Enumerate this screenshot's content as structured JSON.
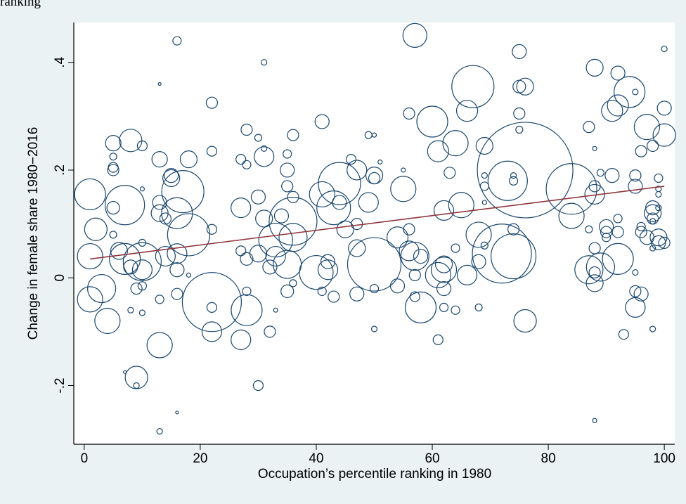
{
  "caption": "ranking",
  "chart_data": {
    "type": "bubble",
    "xlabel": "Occupation’s percentile ranking in 1980",
    "ylabel": "Change in female share 1980−2016",
    "xlim": [
      -1.8,
      101.8
    ],
    "ylim": [
      -0.309,
      0.474
    ],
    "xticks": [
      0,
      20,
      40,
      60,
      80,
      100
    ],
    "yticks": [
      {
        "value": -0.2,
        "label": "-.2"
      },
      0,
      {
        "value": 0.2,
        "label": ".2"
      },
      {
        "value": 0.4,
        "label": ".4"
      }
    ],
    "color": "#1a476f",
    "series": [
      {
        "name": "occupations",
        "color": "#1a476f",
        "x": [
          1,
          2,
          1,
          3,
          1,
          4,
          5,
          5,
          5,
          5,
          5,
          5,
          6,
          7,
          8,
          7,
          10,
          8,
          10,
          9,
          10,
          8,
          10,
          9,
          7,
          9,
          10,
          10,
          10,
          13,
          13,
          13,
          13,
          14,
          13,
          13,
          13,
          16,
          16,
          16,
          14,
          15,
          15,
          16,
          16,
          16,
          17,
          18,
          18,
          18,
          22,
          22,
          22,
          22,
          22,
          22,
          27,
          27,
          27,
          27,
          28,
          28,
          28,
          28,
          28,
          30,
          30,
          30,
          31,
          31,
          31,
          30,
          31,
          32,
          32,
          33,
          33,
          34,
          33,
          35,
          35,
          35,
          35,
          35,
          36,
          36,
          36,
          36,
          36,
          41,
          41,
          40,
          42,
          42,
          41,
          43,
          43,
          44,
          45,
          44,
          47,
          47,
          47,
          47,
          46,
          49,
          49,
          50,
          50,
          50,
          50,
          50,
          50,
          51,
          54,
          54,
          55,
          55,
          56,
          56,
          56,
          57,
          57,
          58,
          58,
          57,
          57,
          60,
          61,
          61,
          61,
          62,
          62,
          62,
          62,
          62,
          63,
          64,
          64,
          64,
          65,
          66,
          66,
          67,
          68,
          68,
          68,
          69,
          69,
          69,
          69,
          69,
          72,
          73,
          74,
          74,
          74,
          74,
          75,
          75,
          76,
          75,
          75,
          76,
          76,
          84,
          84,
          87,
          87,
          88,
          88,
          88,
          88,
          88,
          88,
          88,
          87,
          88,
          89,
          89,
          91,
          92,
          92,
          94,
          95,
          91,
          90,
          90,
          90,
          92,
          92,
          92,
          93,
          95,
          95,
          95,
          95,
          96,
          95,
          96,
          96,
          96,
          97,
          97,
          98,
          98,
          98,
          98,
          98,
          99,
          99,
          99,
          99,
          99,
          99,
          100,
          100,
          100,
          100,
          98,
          98
        ],
        "values": [
          0.155,
          0.09,
          0.04,
          -0.02,
          -0.04,
          -0.08,
          0.25,
          0.2,
          0.205,
          0.225,
          0.13,
          0.08,
          0.05,
          0.135,
          0.255,
          0.035,
          0.03,
          0.02,
          0.015,
          -0.02,
          -0.015,
          -0.06,
          -0.065,
          -0.185,
          -0.175,
          -0.2,
          0.245,
          0.165,
          0.065,
          -0.125,
          0.14,
          0.12,
          0.22,
          0.11,
          -0.04,
          0.36,
          -0.285,
          0.44,
          -0.25,
          -0.03,
          0.04,
          0.185,
          0.19,
          0.015,
          0.045,
          0.12,
          0.16,
          0.08,
          0.22,
          0.005,
          0.325,
          0.235,
          -0.045,
          -0.1,
          -0.055,
          0.09,
          0.13,
          0.22,
          0.05,
          -0.115,
          -0.06,
          0.275,
          0.21,
          0.035,
          -0.025,
          -0.2,
          0.15,
          0.26,
          0.4,
          0.225,
          0.24,
          0.045,
          0.11,
          0.02,
          -0.1,
          0.07,
          0.04,
          0.115,
          -0.06,
          0.2,
          0.23,
          0.17,
          -0.025,
          0.025,
          0.105,
          0.265,
          0.15,
          0.075,
          -0.01,
          0.29,
          0.155,
          0.01,
          0.015,
          0.03,
          -0.025,
          -0.035,
          0.13,
          0.175,
          0.09,
          0.14,
          -0.03,
          0.055,
          0.1,
          0.2,
          0.22,
          0.14,
          0.265,
          0.265,
          0.185,
          0.19,
          0.025,
          -0.095,
          -0.02,
          0.215,
          0.075,
          -0.015,
          0.165,
          0.2,
          0.305,
          0.09,
          0.05,
          0.45,
          0.04,
          -0.055,
          0.04,
          -0.035,
          0.005,
          0.29,
          0.235,
          -0.115,
          0.005,
          0.025,
          0.125,
          0.015,
          -0.02,
          -0.055,
          0.195,
          0.055,
          -0.06,
          0.25,
          0.135,
          0.31,
          0.005,
          0.355,
          0.08,
          0.03,
          -0.055,
          0.245,
          0.19,
          0.17,
          0.06,
          0.14,
          0.045,
          0.18,
          0.04,
          0.09,
          0.18,
          0.19,
          0.42,
          0.355,
          0.355,
          0.305,
          0.275,
          0.2,
          -0.08,
          0.165,
          0.115,
          0.28,
          0.09,
          0.39,
          0.24,
          0.17,
          0.155,
          0.055,
          0.01,
          -0.01,
          0.015,
          -0.265,
          0.02,
          0.195,
          0.31,
          0.38,
          0.32,
          0.345,
          0.345,
          0.19,
          0.095,
          0.085,
          0.075,
          0.085,
          0.035,
          0.11,
          -0.105,
          0.19,
          0.17,
          0.01,
          -0.025,
          -0.03,
          -0.055,
          0.235,
          0.095,
          0.085,
          0.28,
          0.075,
          0.245,
          0.13,
          0.12,
          0.055,
          -0.095,
          0.185,
          0.165,
          0.155,
          0.13,
          0.075,
          0.065,
          0.425,
          0.315,
          0.265,
          0.065,
          0.105,
          0.11
        ],
        "sizes": [
          484,
          256,
          324,
          400,
          324,
          324,
          121,
          64,
          49,
          25,
          81,
          25,
          144,
          784,
          256,
          484,
          729,
          100,
          196,
          64,
          36,
          16,
          16,
          256,
          4,
          16,
          49,
          9,
          25,
          324,
          100,
          144,
          121,
          64,
          36,
          4,
          16,
          36,
          4,
          64,
          196,
          144,
          100,
          100,
          196,
          484,
          900,
          900,
          144,
          9,
          64,
          49,
          1764,
          196,
          49,
          49,
          196,
          49,
          49,
          196,
          484,
          64,
          36,
          81,
          36,
          49,
          100,
          25,
          16,
          196,
          16,
          144,
          144,
          100,
          64,
          576,
          196,
          100,
          9,
          100,
          36,
          64,
          81,
          400,
          1156,
          64,
          64,
          400,
          25,
          100,
          324,
          576,
          196,
          100,
          36,
          64,
          576,
          900,
          144,
          100,
          100,
          144,
          64,
          196,
          49,
          196,
          25,
          9,
          64,
          144,
          1444,
          16,
          36,
          9,
          225,
          100,
          324,
          9,
          64,
          64,
          196,
          289,
          400,
          484,
          100,
          49,
          64,
          484,
          225,
          49,
          324,
          144,
          196,
          324,
          100,
          36,
          64,
          36,
          36,
          324,
          324,
          225,
          196,
          900,
          324,
          100,
          25,
          144,
          16,
          36,
          25,
          9,
          1764,
          784,
          1024,
          64,
          36,
          16,
          100,
          81,
          144,
          64,
          25,
          4624,
          256,
          1296,
          324,
          64,
          25,
          144,
          9,
          64,
          196,
          64,
          64,
          144,
          400,
          9,
          400,
          25,
          225,
          100,
          225,
          484,
          16,
          100,
          100,
          64,
          36,
          64,
          484,
          36,
          49,
          64,
          100,
          16,
          64,
          100,
          196,
          64,
          36,
          64,
          324,
          100,
          64,
          100,
          144,
          16,
          16,
          36,
          16,
          16,
          16,
          144,
          100,
          16,
          100,
          256,
          64,
          16,
          64
        ]
      },
      {
        "name": "fit",
        "color": "#90353b",
        "x": [
          1,
          100
        ],
        "values": [
          0.035,
          0.17
        ]
      }
    ]
  }
}
